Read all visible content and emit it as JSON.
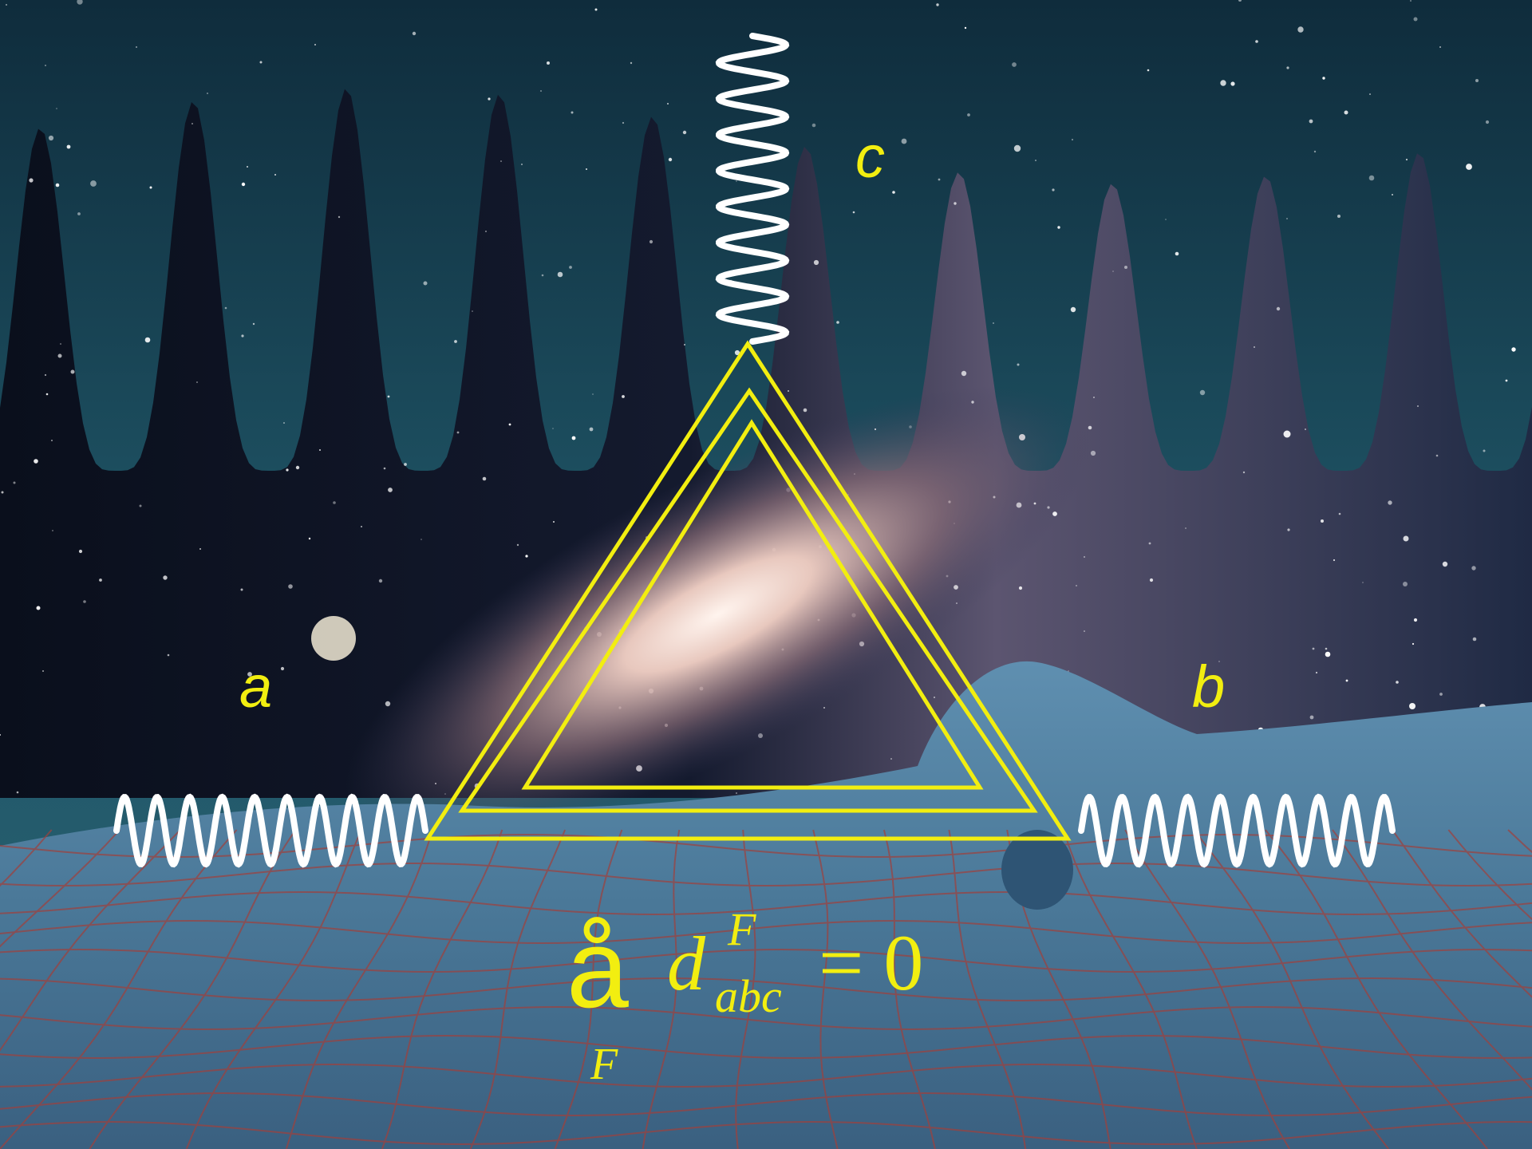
{
  "labels": {
    "a": "a",
    "b": "b",
    "c": "c"
  },
  "equation": {
    "sum_symbol": "å",
    "sum_index": "F",
    "symbol": "d",
    "superscript": "F",
    "subscript": "abc",
    "rhs": "= 0"
  }
}
